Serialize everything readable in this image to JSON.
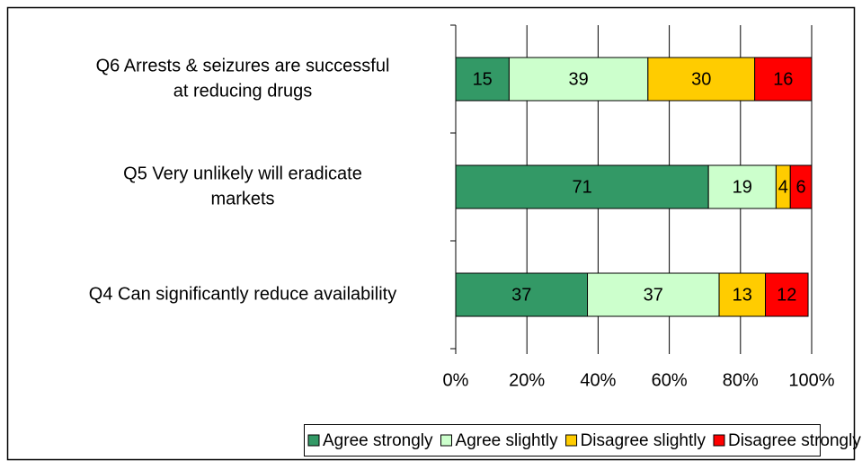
{
  "chart_data": {
    "type": "bar",
    "orientation": "horizontal",
    "stacked": true,
    "categories": [
      [
        "Q6  Arrests & seizures are successful",
        "at reducing drugs"
      ],
      [
        "Q5  Very unlikely will eradicate",
        "markets"
      ],
      [
        "Q4  Can significantly reduce availability"
      ]
    ],
    "series": [
      {
        "name": "Agree strongly",
        "color": "#339966",
        "values": [
          15,
          71,
          37
        ]
      },
      {
        "name": "Agree slightly",
        "color": "#ccffcc",
        "values": [
          39,
          19,
          37
        ]
      },
      {
        "name": "Disagree slightly",
        "color": "#ffcc00",
        "values": [
          30,
          4,
          13
        ]
      },
      {
        "name": "Disagree strongly",
        "color": "#ff0000",
        "values": [
          16,
          6,
          12
        ]
      }
    ],
    "xlim": [
      0,
      100
    ],
    "xticks": [
      {
        "value": 0,
        "label": "0%"
      },
      {
        "value": 20,
        "label": "20%"
      },
      {
        "value": 40,
        "label": "40%"
      },
      {
        "value": 60,
        "label": "60%"
      },
      {
        "value": 80,
        "label": "80%"
      },
      {
        "value": 100,
        "label": "100%"
      }
    ],
    "grid": true,
    "legend": "bottom"
  }
}
